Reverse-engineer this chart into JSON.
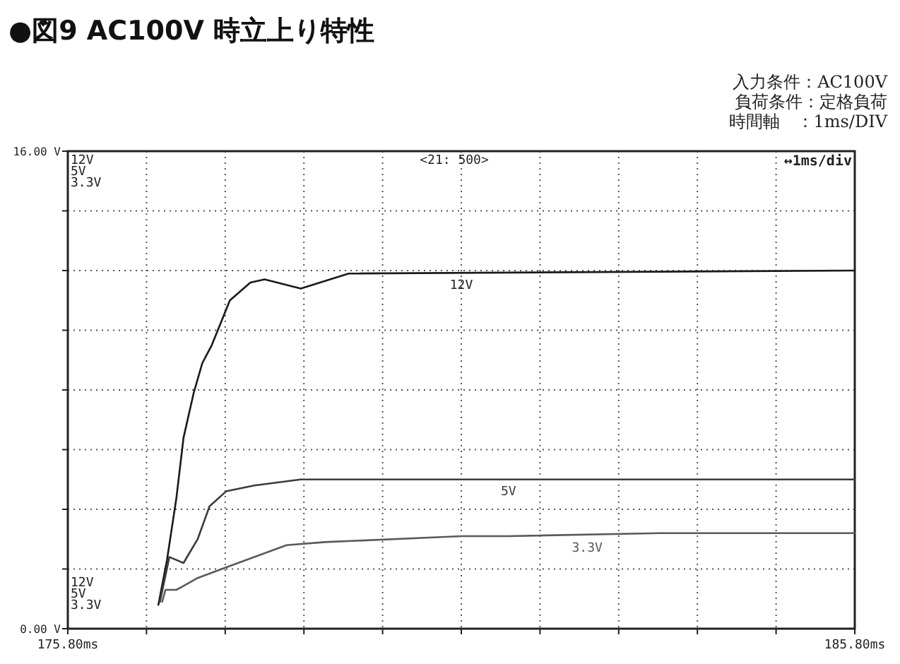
{
  "chart_data": {
    "type": "line",
    "title": "●図9 AC100V 時立上り特性",
    "annotations": [
      "入力条件：AC100V",
      "負荷条件：定格負荷",
      "時間軸　：1ms/DIV",
      "12V\n5V\n3.3V",
      "12V\n5V\n3.3V",
      "<21: 500>",
      "↔1ms/div"
    ],
    "xlim": [
      175.8,
      185.8
    ],
    "xticks": [
      {
        "value": 175.8,
        "label": "175.80ms"
      },
      {
        "value": 176.8,
        "label": null
      },
      {
        "value": 177.8,
        "label": null
      },
      {
        "value": 178.8,
        "label": null
      },
      {
        "value": 179.8,
        "label": null
      },
      {
        "value": 180.8,
        "label": null
      },
      {
        "value": 181.8,
        "label": null
      },
      {
        "value": 182.8,
        "label": null
      },
      {
        "value": 183.8,
        "label": null
      },
      {
        "value": 184.8,
        "label": null
      },
      {
        "value": 185.8,
        "label": "185.80ms"
      }
    ],
    "ylim": [
      0,
      16
    ],
    "yticks": [
      {
        "value": 0,
        "label": "0.00 V"
      },
      {
        "value": 2,
        "label": null
      },
      {
        "value": 4,
        "label": null
      },
      {
        "value": 6,
        "label": null
      },
      {
        "value": 8,
        "label": null
      },
      {
        "value": 10,
        "label": null
      },
      {
        "value": 12,
        "label": null
      },
      {
        "value": 14,
        "label": null
      },
      {
        "value": 16,
        "label": "16.00 V"
      }
    ],
    "grid": true,
    "line_style": "solid",
    "series": [
      {
        "name": "12V",
        "color": "#1a1a1a",
        "x": [
          176.95,
          177.06,
          177.18,
          177.27,
          177.4,
          177.51,
          177.63,
          177.86,
          178.12,
          178.3,
          178.76,
          179.37,
          185.8
        ],
        "values": [
          0.8,
          2.3,
          4.4,
          6.4,
          7.9,
          8.9,
          9.5,
          11.0,
          11.6,
          11.7,
          11.4,
          11.9,
          12.0
        ]
      },
      {
        "name": "5V",
        "color": "#3c3c3c",
        "x": [
          176.97,
          177.09,
          177.27,
          177.45,
          177.6,
          177.81,
          178.17,
          178.76,
          179.37,
          185.8
        ],
        "values": [
          0.9,
          2.4,
          2.2,
          3.0,
          4.1,
          4.6,
          4.8,
          5.0,
          5.0,
          5.0
        ]
      },
      {
        "name": "3.3V",
        "color": "#5a5a5a",
        "x": [
          177.0,
          177.04,
          177.18,
          177.45,
          177.86,
          178.58,
          179.07,
          180.81,
          181.4,
          183.32,
          184.87,
          185.8
        ],
        "values": [
          0.9,
          1.3,
          1.3,
          1.7,
          2.1,
          2.8,
          2.9,
          3.1,
          3.1,
          3.2,
          3.2,
          3.2
        ]
      }
    ]
  }
}
